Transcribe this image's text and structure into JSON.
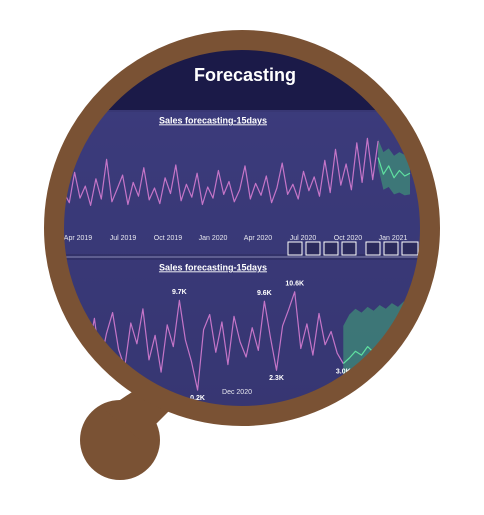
{
  "header": {
    "title": "Forecasting"
  },
  "chart_data": [
    {
      "type": "line",
      "title": "Sales forecasting-15days",
      "xtick_labels": [
        "Apr 2019",
        "Jul 2019",
        "Oct 2019",
        "Jan 2020",
        "Apr 2020",
        "Jul 2020",
        "Oct 2020",
        "Jan 2021"
      ],
      "ylim": [
        0,
        10000
      ],
      "series": [
        {
          "color": "#c575c8",
          "values": [
            3200,
            2100,
            5400,
            2600,
            3900,
            1800,
            4700,
            2500,
            6800,
            2200,
            3600,
            5100,
            1900,
            4300,
            2800,
            5900,
            2400,
            3700,
            2000,
            4800,
            3100,
            6200,
            2300,
            4100,
            2700,
            5300,
            1900,
            3800,
            2600,
            5600,
            3000,
            4400,
            2200,
            3500,
            6100,
            2500,
            4200,
            2900,
            5000,
            2100,
            3700,
            6400,
            3000,
            4100,
            2500,
            5500,
            3400,
            4900,
            2800,
            6700,
            3200,
            7900,
            4000,
            6300,
            3500,
            8600,
            4300,
            9100,
            4600,
            8800,
            null,
            null,
            null,
            null,
            null,
            null
          ]
        },
        {
          "color": "#5fe0a0",
          "values": [
            null,
            null,
            null,
            null,
            null,
            null,
            null,
            null,
            null,
            null,
            null,
            null,
            null,
            null,
            null,
            null,
            null,
            null,
            null,
            null,
            null,
            null,
            null,
            null,
            null,
            null,
            null,
            null,
            null,
            null,
            null,
            null,
            null,
            null,
            null,
            null,
            null,
            null,
            null,
            null,
            null,
            null,
            null,
            null,
            null,
            null,
            null,
            null,
            null,
            null,
            null,
            null,
            null,
            null,
            null,
            null,
            null,
            null,
            null,
            7000,
            5200,
            6100,
            4800,
            5600,
            5000,
            5300
          ]
        }
      ],
      "band": {
        "color": "#3f8c78",
        "lower": [
          null,
          null,
          null,
          null,
          null,
          null,
          null,
          null,
          null,
          null,
          null,
          null,
          null,
          null,
          null,
          null,
          null,
          null,
          null,
          null,
          null,
          null,
          null,
          null,
          null,
          null,
          null,
          null,
          null,
          null,
          null,
          null,
          null,
          null,
          null,
          null,
          null,
          null,
          null,
          null,
          null,
          null,
          null,
          null,
          null,
          null,
          null,
          null,
          null,
          null,
          null,
          null,
          null,
          null,
          null,
          null,
          null,
          null,
          null,
          6000,
          3500,
          3800,
          3000,
          3200,
          2900,
          3000
        ],
        "upper": [
          null,
          null,
          null,
          null,
          null,
          null,
          null,
          null,
          null,
          null,
          null,
          null,
          null,
          null,
          null,
          null,
          null,
          null,
          null,
          null,
          null,
          null,
          null,
          null,
          null,
          null,
          null,
          null,
          null,
          null,
          null,
          null,
          null,
          null,
          null,
          null,
          null,
          null,
          null,
          null,
          null,
          null,
          null,
          null,
          null,
          null,
          null,
          null,
          null,
          null,
          null,
          null,
          null,
          null,
          null,
          null,
          null,
          null,
          null,
          9000,
          7600,
          8000,
          7200,
          7600,
          7300,
          7500
        ]
      }
    },
    {
      "type": "line",
      "title": "Sales forecasting-15days",
      "xtick_labels": [
        "Dec 2020"
      ],
      "ylim": [
        0,
        11000
      ],
      "series": [
        {
          "color": "#c575c8",
          "values": [
            5200,
            3800,
            2400,
            6900,
            4100,
            7800,
            3000,
            6200,
            8400,
            4500,
            2600,
            7300,
            5100,
            8800,
            3400,
            6000,
            2100,
            7100,
            4800,
            9700,
            5500,
            3200,
            200,
            6600,
            8200,
            4200,
            7400,
            2900,
            8000,
            5300,
            3700,
            6800,
            4400,
            9600,
            5800,
            2300,
            7000,
            8700,
            10600,
            4600,
            7200,
            3900,
            8300,
            5000,
            6400,
            4100,
            3000,
            null,
            null,
            null,
            null,
            null,
            null,
            null,
            null,
            null,
            null
          ],
          "value_labels": [
            null,
            null,
            null,
            null,
            null,
            null,
            null,
            null,
            null,
            null,
            null,
            null,
            null,
            null,
            null,
            null,
            null,
            null,
            null,
            "9.7K",
            null,
            null,
            "0.2K",
            null,
            null,
            null,
            null,
            null,
            null,
            null,
            null,
            null,
            null,
            "9.6K",
            null,
            "2.3K",
            null,
            null,
            "10.6K",
            null,
            null,
            null,
            null,
            null,
            null,
            null,
            "3.0K",
            null,
            null,
            null,
            null,
            null,
            null,
            null,
            null,
            null,
            null
          ]
        },
        {
          "color": "#5fe0a0",
          "values": [
            null,
            null,
            null,
            null,
            null,
            null,
            null,
            null,
            null,
            null,
            null,
            null,
            null,
            null,
            null,
            null,
            null,
            null,
            null,
            null,
            null,
            null,
            null,
            null,
            null,
            null,
            null,
            null,
            null,
            null,
            null,
            null,
            null,
            null,
            null,
            null,
            null,
            null,
            null,
            null,
            null,
            null,
            null,
            null,
            null,
            null,
            3000,
            3600,
            4300,
            3900,
            4800,
            4200,
            5100,
            4600,
            5400,
            4900,
            5700
          ]
        }
      ],
      "band": {
        "color": "#3f8c78",
        "lower": [
          null,
          null,
          null,
          null,
          null,
          null,
          null,
          null,
          null,
          null,
          null,
          null,
          null,
          null,
          null,
          null,
          null,
          null,
          null,
          null,
          null,
          null,
          null,
          null,
          null,
          null,
          null,
          null,
          null,
          null,
          null,
          null,
          null,
          null,
          null,
          null,
          null,
          null,
          null,
          null,
          null,
          null,
          null,
          null,
          null,
          null,
          1500,
          1200,
          1000,
          800,
          1100,
          900,
          1200,
          1000,
          1300,
          1100,
          1400
        ],
        "upper": [
          null,
          null,
          null,
          null,
          null,
          null,
          null,
          null,
          null,
          null,
          null,
          null,
          null,
          null,
          null,
          null,
          null,
          null,
          null,
          null,
          null,
          null,
          null,
          null,
          null,
          null,
          null,
          null,
          null,
          null,
          null,
          null,
          null,
          null,
          null,
          null,
          null,
          null,
          null,
          null,
          null,
          null,
          null,
          null,
          null,
          null,
          7000,
          8200,
          8800,
          8400,
          9000,
          8600,
          9200,
          8800,
          9400,
          9000,
          9600
        ]
      }
    }
  ]
}
